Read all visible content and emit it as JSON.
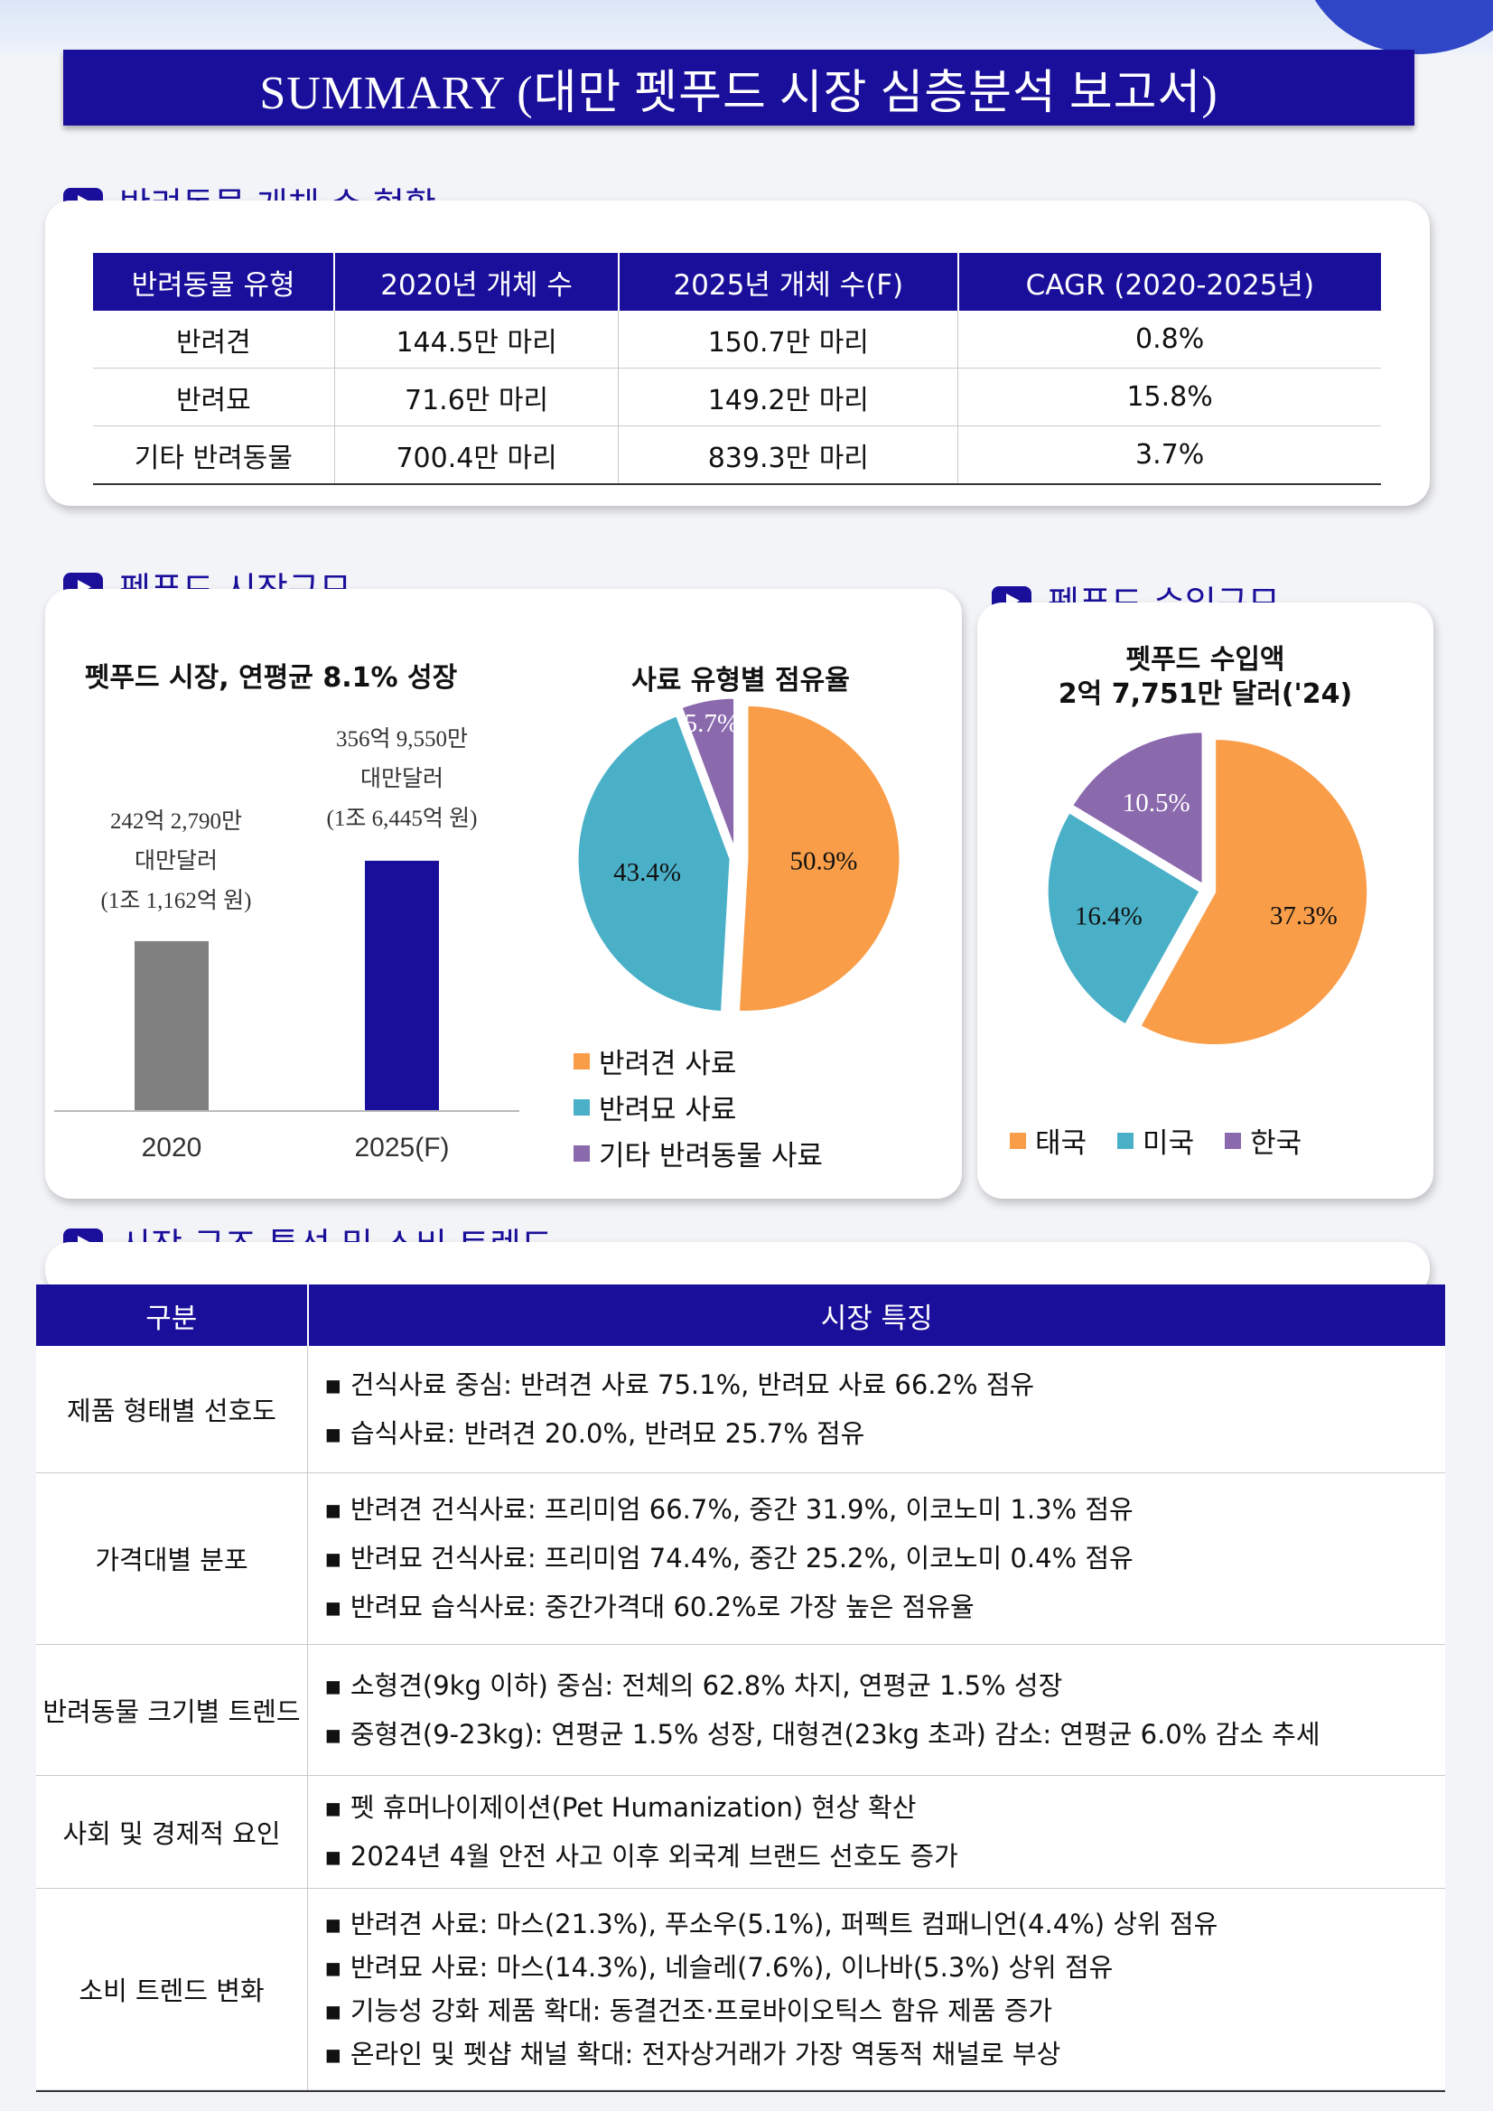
{
  "title": "SUMMARY (대만 펫푸드 시장 심층분석 보고서)",
  "sections": {
    "population": "반려동물 개체 수 현황",
    "market": "펫푸드 시장규모",
    "import": "펫푸드 수입규모",
    "trend": "시장 구조 특성 및 소비 트렌드"
  },
  "population_table": {
    "headers": [
      "반려동물 유형",
      "2020년 개체 수",
      "2025년 개체 수(F)",
      "CAGR (2020-2025년)"
    ],
    "rows": [
      [
        "반려견",
        "144.5만 마리",
        "150.7만 마리",
        "0.8%"
      ],
      [
        "반려묘",
        "71.6만 마리",
        "149.2만 마리",
        "15.8%"
      ],
      [
        "기타 반려동물",
        "700.4만 마리",
        "839.3만 마리",
        "3.7%"
      ]
    ]
  },
  "chart_data": [
    {
      "type": "bar",
      "title": "펫푸드 시장, 연평균 8.1% 성장",
      "categories": [
        "2020",
        "2025(F)"
      ],
      "values": [
        242.279,
        356.955
      ],
      "value_labels": [
        [
          "242억 2,790만",
          "대만달러",
          "(1조 1,162억 원)"
        ],
        [
          "356억 9,550만",
          "대만달러",
          "(1조 6,445억 원)"
        ]
      ],
      "colors": [
        "#808080",
        "#1a0f9a"
      ]
    },
    {
      "type": "pie",
      "title": "사료 유형별 점유율",
      "labels": [
        "반려견 사료",
        "반려묘 사료",
        "기타 반려동물 사료"
      ],
      "values": [
        50.9,
        43.4,
        5.7
      ],
      "value_labels": [
        "50.9%",
        "43.4%",
        "5.7%"
      ],
      "colors": [
        "#f99d48",
        "#4ab0c8",
        "#8a69ad"
      ]
    },
    {
      "type": "pie",
      "title": "펫푸드 수입액",
      "subtitle": "2억 7,751만 달러('24)",
      "labels": [
        "태국",
        "미국",
        "한국"
      ],
      "values": [
        37.3,
        16.4,
        10.5
      ],
      "value_labels": [
        "37.3%",
        "16.4%",
        "10.5%"
      ],
      "colors": [
        "#f99d48",
        "#4ab0c8",
        "#8a69ad"
      ]
    }
  ],
  "trend_table": {
    "headers": [
      "구분",
      "시장 특징"
    ],
    "rows": [
      {
        "category": "제품 형태별 선호도",
        "items": [
          "건식사료 중심: 반려견 사료 75.1%, 반려묘 사료 66.2% 점유",
          "습식사료: 반려견 20.0%, 반려묘 25.7% 점유"
        ]
      },
      {
        "category": "가격대별 분포",
        "items": [
          "반려견 건식사료: 프리미엄 66.7%, 중간 31.9%, 이코노미 1.3% 점유",
          "반려묘 건식사료: 프리미엄 74.4%, 중간 25.2%, 이코노미 0.4% 점유",
          "반려묘 습식사료: 중간가격대 60.2%로 가장 높은 점유율"
        ]
      },
      {
        "category": "반려동물 크기별 트렌드",
        "items": [
          "소형견(9kg 이하) 중심: 전체의 62.8% 차지, 연평균 1.5% 성장",
          "중형견(9-23kg): 연평균 1.5% 성장, 대형견(23kg 초과) 감소: 연평균 6.0% 감소 추세"
        ]
      },
      {
        "category": "사회 및 경제적 요인",
        "items": [
          "펫 휴머나이제이션(Pet Humanization) 현상 확산",
          "2024년 4월 안전 사고 이후 외국계 브랜드 선호도 증가"
        ]
      },
      {
        "category": "소비 트렌드 변화",
        "items": [
          "반려견 사료: 마스(21.3%), 푸소우(5.1%), 퍼펙트 컴패니언(4.4%) 상위 점유",
          "반려묘 사료: 마스(14.3%), 네슬레(7.6%), 이나바(5.3%) 상위 점유",
          "기능성 강화 제품 확대: 동결건조·프로바이오틱스 함유 제품 증가",
          "온라인 및 펫샵 채널 확대: 전자상거래가 가장 역동적 채널로 부상"
        ]
      }
    ]
  }
}
